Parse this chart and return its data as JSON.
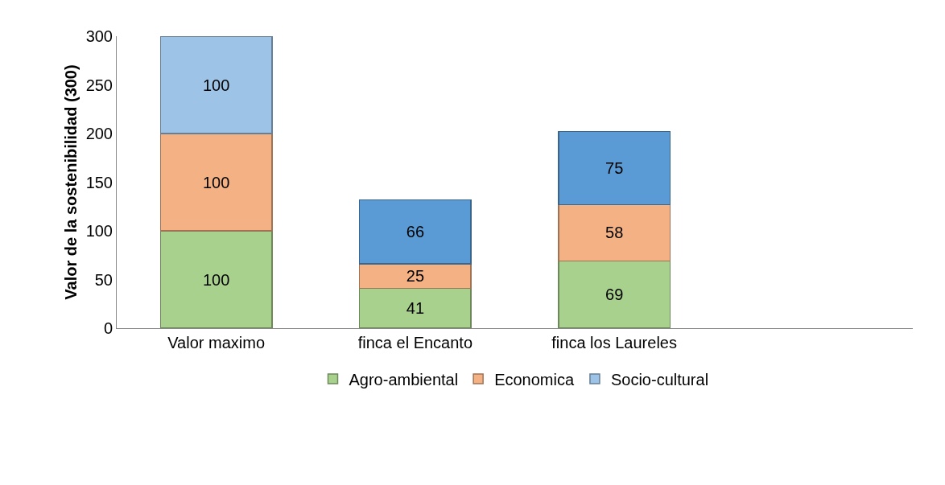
{
  "chart_data": {
    "type": "bar",
    "stacked": true,
    "ylabel": "Valor de la sostenibilidad (300)",
    "categories": [
      "Valor maximo",
      "finca el Encanto",
      "finca los Laureles",
      null
    ],
    "series": [
      {
        "name": "Agro-ambiental",
        "colors": [
          "#a9d18e",
          "#a9d18e",
          "#a9d18e",
          null
        ],
        "values": [
          100,
          41,
          69,
          null
        ]
      },
      {
        "name": "Economica",
        "colors": [
          "#f4b183",
          "#f4b183",
          "#f4b183",
          null
        ],
        "values": [
          100,
          25,
          58,
          null
        ]
      },
      {
        "name": "Socio-cultural",
        "colors": [
          "#9dc3e6",
          "#5b9bd5",
          "#5b9bd5",
          null
        ],
        "values": [
          100,
          66,
          75,
          null
        ]
      }
    ],
    "data_labels": true,
    "ylim": [
      0,
      300
    ],
    "yticks": [
      0,
      50,
      100,
      150,
      200,
      250,
      300
    ],
    "grid": false,
    "legend": "bottom"
  }
}
